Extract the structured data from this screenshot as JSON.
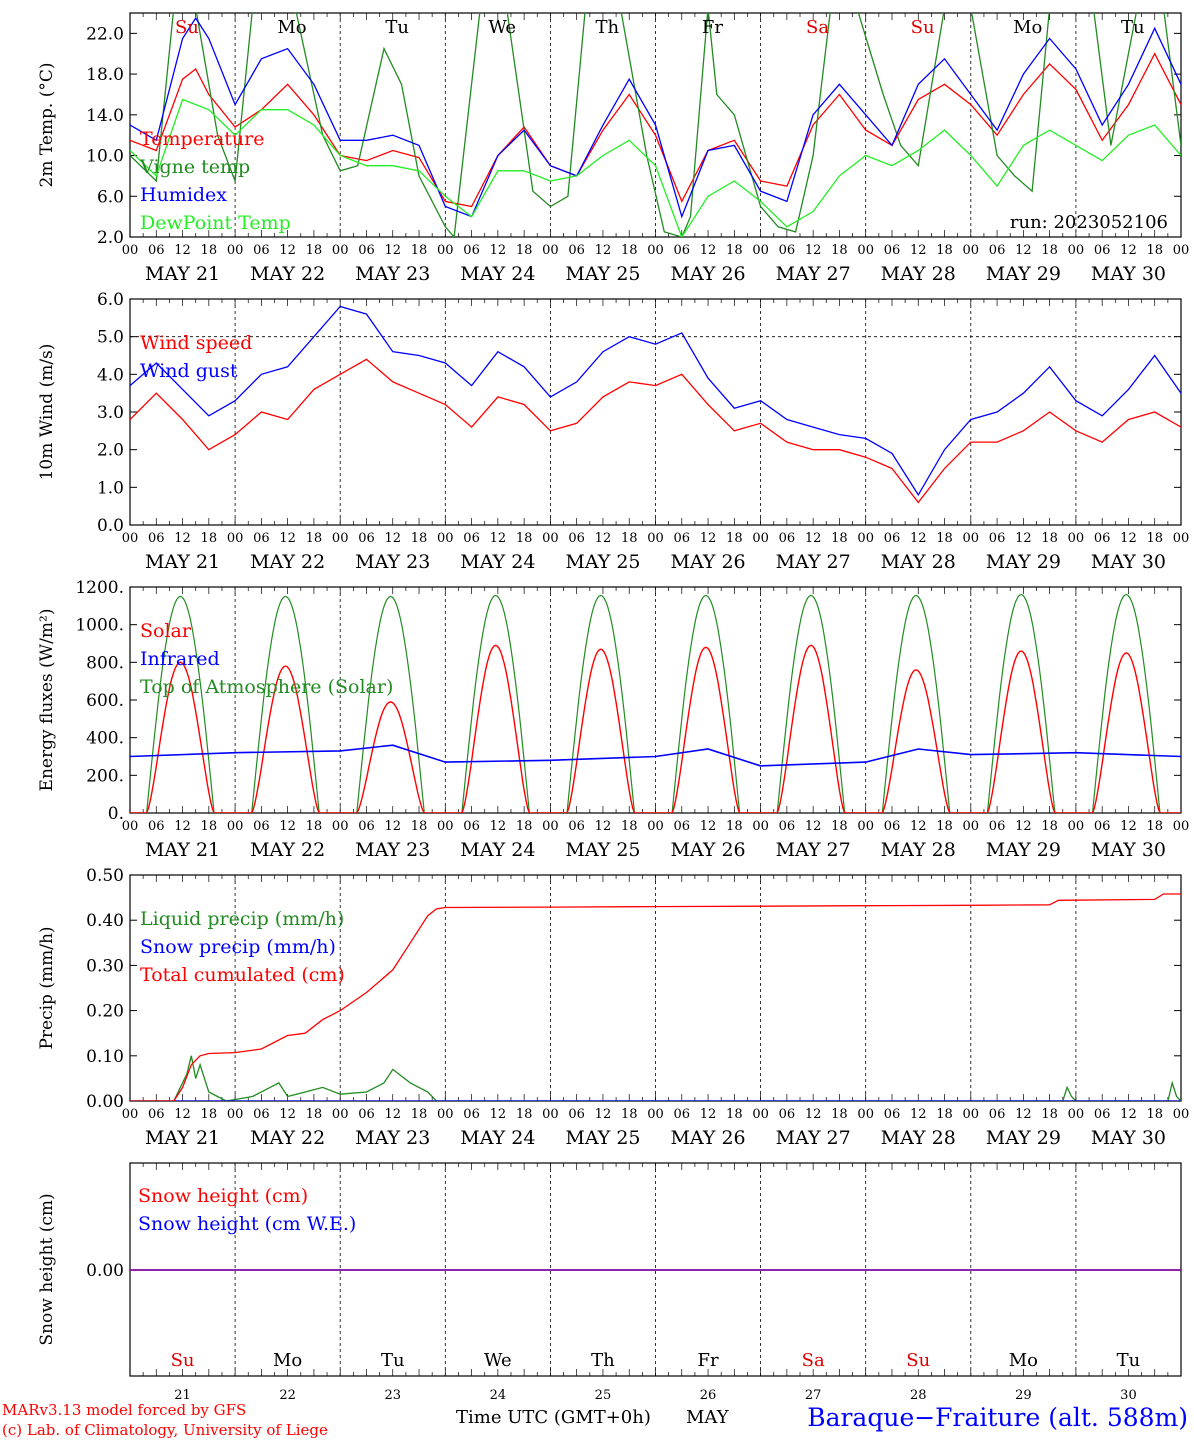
{
  "page": {
    "days_short": [
      "Su",
      "Mo",
      "Tu",
      "We",
      "Th",
      "Fr",
      "Sa",
      "Su",
      "Mo",
      "Tu"
    ],
    "day_numbers": [
      "21",
      "22",
      "23",
      "24",
      "25",
      "26",
      "27",
      "28",
      "29",
      "30"
    ],
    "date_labels": [
      "MAY 21",
      "MAY 22",
      "MAY 23",
      "MAY 24",
      "MAY 25",
      "MAY 26",
      "MAY 27",
      "MAY 28",
      "MAY 29",
      "MAY 30"
    ],
    "hour_ticks": [
      "00",
      "06",
      "12",
      "18"
    ],
    "hour_end": "00",
    "footer_model": "MARv3.13 model forced by GFS",
    "footer_credit": "(c) Lab. of Climatology, University of Liege",
    "footer_xlabel": "Time UTC (GMT+0h)",
    "footer_month": "MAY",
    "footer_station": "Baraque−Fraiture (alt. 588m)",
    "run_label": "run: 2023052106",
    "colors": {
      "weekday": "#000000",
      "weekend": "#e00000",
      "red": "#ff0000",
      "green": "#228b22",
      "blue": "#0000ff",
      "lightgreen": "#22ee22",
      "purple": "#8000a0"
    }
  },
  "chart_data": [
    {
      "type": "line",
      "ylabel": "2m Temp. (°C)",
      "ylim": [
        2.0,
        24.0
      ],
      "yticks": [
        "2.0",
        "6.0",
        "10.0",
        "14.0",
        "18.0",
        "22.0"
      ],
      "ytick_values": [
        2,
        6,
        10,
        14,
        18,
        22
      ],
      "x_unit": "hours since MAY 21 00 UTC",
      "series": [
        {
          "name": "Temperature",
          "color": "#ff0000",
          "x": [
            0,
            6,
            12,
            15,
            18,
            24,
            30,
            36,
            42,
            48,
            54,
            60,
            66,
            72,
            78,
            84,
            90,
            96,
            102,
            108,
            114,
            120,
            126,
            132,
            138,
            144,
            150,
            156,
            162,
            168,
            174,
            180,
            186,
            192,
            198,
            204,
            210,
            216,
            222,
            228,
            234,
            240
          ],
          "values": [
            11.5,
            10.5,
            17.5,
            18.5,
            16.0,
            12.8,
            14.5,
            17.0,
            14.0,
            10.0,
            9.5,
            10.5,
            9.8,
            5.5,
            5.0,
            10.0,
            12.8,
            9.0,
            8.0,
            12.5,
            16.0,
            12.0,
            5.5,
            10.5,
            11.5,
            7.5,
            7.0,
            13.0,
            16.0,
            12.5,
            11.0,
            15.5,
            17.0,
            15.0,
            12.0,
            16.0,
            19.0,
            16.5,
            11.5,
            15.0,
            20.0,
            15.0
          ]
        },
        {
          "name": "Vigne temp",
          "color": "#228b22",
          "x": [
            0,
            6,
            10,
            15,
            20,
            24,
            28,
            34,
            38,
            44,
            48,
            52,
            58,
            62,
            66,
            72,
            74,
            80,
            86,
            92,
            96,
            100,
            104,
            108,
            112,
            118,
            122,
            126,
            128,
            132,
            134,
            138,
            144,
            148,
            152,
            156,
            160,
            166,
            172,
            176,
            180,
            186,
            192,
            198,
            202,
            206,
            210,
            216,
            220,
            224,
            230,
            236,
            240
          ],
          "values": [
            10.0,
            7.5,
            24.5,
            24.5,
            12.0,
            7.5,
            24.5,
            24.5,
            24.0,
            12.0,
            8.5,
            9.0,
            20.5,
            17.0,
            8.0,
            3.0,
            2.0,
            24.5,
            24.5,
            6.5,
            5.0,
            6.0,
            24.5,
            24.5,
            24.5,
            10.0,
            2.5,
            2.0,
            4.0,
            24.5,
            16.0,
            14.0,
            5.0,
            3.0,
            2.5,
            10.0,
            24.5,
            24.5,
            16.0,
            11.0,
            9.0,
            24.5,
            24.5,
            10.0,
            8.0,
            6.5,
            24.5,
            24.5,
            24.5,
            11.0,
            24.5,
            24.5,
            11.0
          ]
        },
        {
          "name": "Humidex",
          "color": "#0000ff",
          "x": [
            0,
            6,
            12,
            15,
            18,
            24,
            30,
            36,
            42,
            48,
            54,
            60,
            66,
            72,
            78,
            84,
            90,
            96,
            102,
            108,
            114,
            120,
            126,
            132,
            138,
            144,
            150,
            156,
            162,
            168,
            174,
            180,
            186,
            192,
            198,
            204,
            210,
            216,
            222,
            228,
            234,
            240
          ],
          "values": [
            13.0,
            11.5,
            21.5,
            23.5,
            21.5,
            15.0,
            19.5,
            20.5,
            17.0,
            11.5,
            11.5,
            12.0,
            11.0,
            5.0,
            4.0,
            10.0,
            12.5,
            9.0,
            8.0,
            13.0,
            17.5,
            13.0,
            4.0,
            10.5,
            11.0,
            6.5,
            5.5,
            14.0,
            17.0,
            14.0,
            11.0,
            17.0,
            19.5,
            16.0,
            12.5,
            18.0,
            21.5,
            18.5,
            13.0,
            17.0,
            22.5,
            17.0
          ]
        },
        {
          "name": "DewPoint Temp",
          "color": "#22ee22",
          "x": [
            0,
            6,
            12,
            18,
            24,
            30,
            36,
            42,
            48,
            54,
            60,
            66,
            72,
            78,
            84,
            90,
            96,
            102,
            108,
            114,
            120,
            126,
            132,
            138,
            144,
            150,
            156,
            162,
            168,
            174,
            180,
            186,
            192,
            198,
            204,
            210,
            216,
            222,
            228,
            234,
            240
          ],
          "values": [
            10.5,
            8.0,
            15.5,
            14.5,
            12.0,
            14.5,
            14.5,
            13.0,
            10.0,
            9.0,
            9.0,
            8.5,
            6.0,
            4.0,
            8.5,
            8.5,
            7.5,
            8.0,
            10.0,
            11.5,
            9.0,
            2.0,
            6.0,
            7.5,
            5.5,
            3.0,
            4.5,
            8.0,
            10.0,
            9.0,
            10.5,
            12.5,
            10.0,
            7.0,
            11.0,
            12.5,
            11.0,
            9.5,
            12.0,
            13.0,
            10.0
          ]
        }
      ],
      "legend": [
        "Temperature",
        "Vigne temp",
        "Humidex",
        "DewPoint Temp"
      ],
      "legend_position": "top-left"
    },
    {
      "type": "line",
      "ylabel": "10m Wind (m/s)",
      "ylim": [
        0.0,
        6.0
      ],
      "yticks": [
        "0.0",
        "1.0",
        "2.0",
        "3.0",
        "4.0",
        "5.0",
        "6.0"
      ],
      "ytick_values": [
        0,
        1,
        2,
        3,
        4,
        5,
        6
      ],
      "reference_line": 5.0,
      "x_unit": "hours since MAY 21 00 UTC",
      "series": [
        {
          "name": "Wind speed",
          "color": "#ff0000",
          "x": [
            0,
            6,
            12,
            18,
            24,
            30,
            36,
            42,
            48,
            54,
            60,
            66,
            72,
            78,
            84,
            90,
            96,
            102,
            108,
            114,
            120,
            126,
            132,
            138,
            144,
            150,
            156,
            162,
            168,
            174,
            180,
            186,
            192,
            198,
            204,
            210,
            216,
            222,
            228,
            234,
            240
          ],
          "values": [
            2.8,
            3.5,
            2.8,
            2.0,
            2.4,
            3.0,
            2.8,
            3.6,
            4.0,
            4.4,
            3.8,
            3.5,
            3.2,
            2.6,
            3.4,
            3.2,
            2.5,
            2.7,
            3.4,
            3.8,
            3.7,
            4.0,
            3.2,
            2.5,
            2.7,
            2.2,
            2.0,
            2.0,
            1.8,
            1.5,
            0.6,
            1.5,
            2.2,
            2.2,
            2.5,
            3.0,
            2.5,
            2.2,
            2.8,
            3.0,
            2.6
          ]
        },
        {
          "name": "Wind gust",
          "color": "#0000ff",
          "x": [
            0,
            6,
            12,
            18,
            24,
            30,
            36,
            42,
            48,
            54,
            60,
            66,
            72,
            78,
            84,
            90,
            96,
            102,
            108,
            114,
            120,
            126,
            132,
            138,
            144,
            150,
            156,
            162,
            168,
            174,
            180,
            186,
            192,
            198,
            204,
            210,
            216,
            222,
            228,
            234,
            240
          ],
          "values": [
            3.7,
            4.3,
            3.6,
            2.9,
            3.3,
            4.0,
            4.2,
            5.0,
            5.8,
            5.6,
            4.6,
            4.5,
            4.3,
            3.7,
            4.6,
            4.2,
            3.4,
            3.8,
            4.6,
            5.0,
            4.8,
            5.1,
            3.9,
            3.1,
            3.3,
            2.8,
            2.6,
            2.4,
            2.3,
            1.9,
            0.8,
            2.0,
            2.8,
            3.0,
            3.5,
            4.2,
            3.3,
            2.9,
            3.6,
            4.5,
            3.5
          ]
        }
      ],
      "legend": [
        "Wind speed",
        "Wind gust"
      ],
      "legend_position": "top-left"
    },
    {
      "type": "line",
      "ylabel": "Energy fluxes (W/m²)",
      "ylim": [
        0,
        1200
      ],
      "yticks": [
        "0.",
        "200.",
        "400.",
        "600.",
        "800.",
        "1000.",
        "1200."
      ],
      "ytick_values": [
        0,
        200,
        400,
        600,
        800,
        1000,
        1200
      ],
      "x_unit": "hours since MAY 21 00 UTC",
      "daily_peaks": {
        "Solar": [
          800,
          780,
          590,
          890,
          870,
          880,
          890,
          760,
          860,
          850
        ],
        "Top of Atmosphere (Solar)": [
          1150,
          1150,
          1150,
          1155,
          1155,
          1155,
          1155,
          1155,
          1160,
          1160
        ]
      },
      "sun_hours": {
        "rise": 3.8,
        "set": 19.2
      },
      "series": [
        {
          "name": "Infrared",
          "color": "#0000ff",
          "x": [
            0,
            24,
            48,
            60,
            72,
            96,
            120,
            132,
            144,
            168,
            180,
            192,
            216,
            240
          ],
          "values": [
            300,
            320,
            330,
            360,
            270,
            280,
            300,
            340,
            250,
            270,
            340,
            310,
            320,
            300
          ]
        }
      ],
      "legend": [
        "Solar",
        "Infrared",
        "Top of Atmosphere (Solar)"
      ],
      "legend_position": "top-left"
    },
    {
      "type": "line",
      "ylabel": "Precip (mm/h)",
      "ylim": [
        0.0,
        0.5
      ],
      "yticks": [
        "0.00",
        "0.10",
        "0.20",
        "0.30",
        "0.40",
        "0.50"
      ],
      "ytick_values": [
        0,
        0.1,
        0.2,
        0.3,
        0.4,
        0.5
      ],
      "x_unit": "hours since MAY 21 00 UTC",
      "series": [
        {
          "name": "Liquid precip (mm/h)",
          "color": "#228b22",
          "x": [
            0,
            10,
            13,
            14,
            15,
            16,
            18,
            22,
            28,
            32,
            34,
            36,
            40,
            44,
            48,
            54,
            58,
            60,
            64,
            68,
            70,
            72,
            120,
            180,
            213,
            214,
            215,
            216,
            237,
            238,
            239,
            240
          ],
          "values": [
            0,
            0,
            0.06,
            0.1,
            0.05,
            0.08,
            0.02,
            0,
            0.01,
            0.03,
            0.04,
            0.01,
            0.02,
            0.03,
            0.015,
            0.02,
            0.04,
            0.07,
            0.04,
            0.02,
            0,
            0,
            0,
            0,
            0,
            0.03,
            0.01,
            0,
            0,
            0.04,
            0.01,
            0
          ]
        },
        {
          "name": "Snow precip (mm/h)",
          "color": "#0000ff",
          "x": [
            0,
            240
          ],
          "values": [
            0,
            0
          ]
        },
        {
          "name": "Total cumulated (cm)",
          "color": "#ff0000",
          "x": [
            0,
            10,
            12,
            14,
            16,
            18,
            24,
            30,
            36,
            40,
            44,
            48,
            54,
            60,
            64,
            68,
            70,
            72,
            96,
            120,
            144,
            168,
            192,
            210,
            212,
            234,
            236,
            240
          ],
          "values": [
            0,
            0,
            0.03,
            0.08,
            0.1,
            0.105,
            0.107,
            0.115,
            0.145,
            0.15,
            0.18,
            0.2,
            0.24,
            0.29,
            0.35,
            0.41,
            0.425,
            0.428,
            0.429,
            0.43,
            0.431,
            0.432,
            0.433,
            0.434,
            0.444,
            0.446,
            0.458,
            0.458
          ]
        }
      ],
      "legend": [
        "Liquid precip (mm/h)",
        "Snow precip (mm/h)",
        "Total cumulated (cm)"
      ],
      "legend_position": "top-left"
    },
    {
      "type": "line",
      "ylabel": "Snow height (cm)",
      "yticks": [
        "0.00"
      ],
      "ytick_values": [
        0
      ],
      "x_unit": "hours since MAY 21 00 UTC",
      "series": [
        {
          "name": "Snow height (cm)",
          "color": "#ff0000",
          "x": [
            0,
            240
          ],
          "values": [
            0,
            0
          ]
        },
        {
          "name": "Snow height (cm W.E.)",
          "color": "#0000ff",
          "x": [
            0,
            240
          ],
          "values": [
            0,
            0
          ]
        }
      ],
      "legend": [
        "Snow height (cm)",
        "Snow height (cm W.E.)"
      ],
      "legend_position": "top-left"
    }
  ]
}
